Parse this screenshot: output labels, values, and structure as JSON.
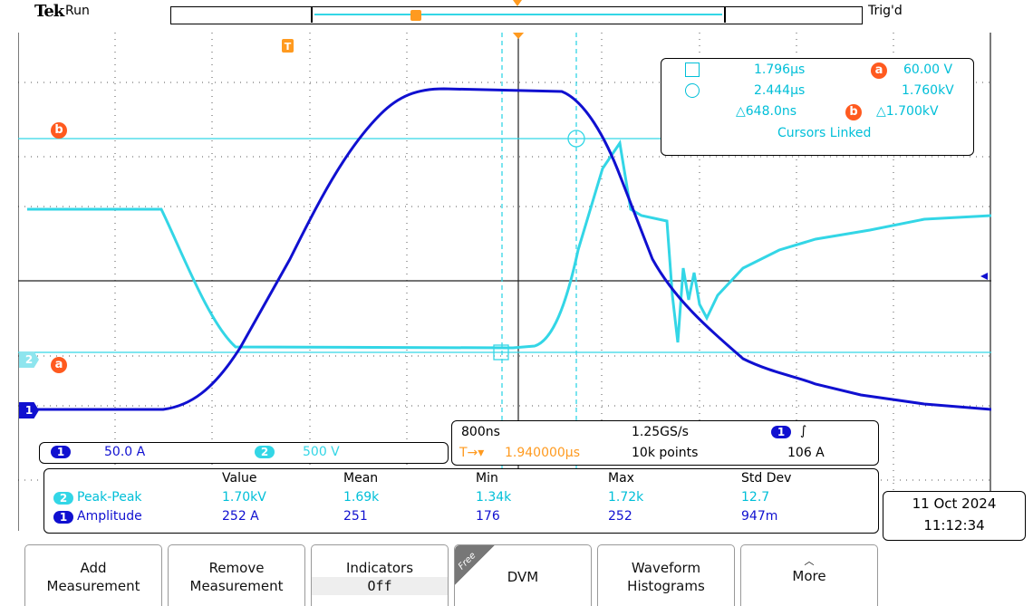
{
  "header": {
    "brand": "Tek",
    "acq_state": "Run",
    "trigger_state": "Trig'd",
    "trigger_marker": "T"
  },
  "cursor_readout": {
    "row1_time": "1.796µs",
    "row1_label": "a",
    "row1_value": "60.00 V",
    "row2_time": "2.444µs",
    "row2_value": "1.760kV",
    "delta_time": "△648.0ns",
    "delta_label": "b",
    "delta_value": "△1.700kV",
    "status": "Cursors Linked"
  },
  "channels": {
    "ch1": {
      "label": "1",
      "scale": "50.0 A",
      "color": "#1010d0"
    },
    "ch2": {
      "label": "2",
      "scale": "500 V",
      "color": "#33d6e6"
    },
    "cursor_a_label": "a",
    "cursor_b_label": "b"
  },
  "timebase": {
    "horizontal_scale": "800ns",
    "sample_rate": "1.25GS/s",
    "trigger_channel": "1",
    "trigger_slope": "∫",
    "trigger_position": "1.940000µs",
    "trigger_prefix": "T→▾",
    "record_length": "10k points",
    "trigger_level": "106 A"
  },
  "measurements": {
    "headers": [
      "Value",
      "Mean",
      "Min",
      "Max",
      "Std Dev"
    ],
    "rows": [
      {
        "channel": "2",
        "name": "Peak-Peak",
        "value": "1.70kV",
        "mean": "1.69k",
        "min": "1.34k",
        "max": "1.72k",
        "std": "12.7"
      },
      {
        "channel": "1",
        "name": "Amplitude",
        "value": "252 A",
        "mean": "251",
        "min": "176",
        "max": "252",
        "std": "947m"
      }
    ]
  },
  "datetime": {
    "date": "11 Oct  2024",
    "time": "11:12:34"
  },
  "buttons": [
    {
      "line1": "Add",
      "line2": "Measurement"
    },
    {
      "line1": "Remove",
      "line2": "Measurement"
    },
    {
      "line1": "Indicators",
      "line2": "Off"
    },
    {
      "line1": "DVM",
      "line2": "",
      "ribbon": "Free"
    },
    {
      "line1": "Waveform",
      "line2": "Histograms"
    },
    {
      "line1": "More",
      "line2": ""
    }
  ]
}
